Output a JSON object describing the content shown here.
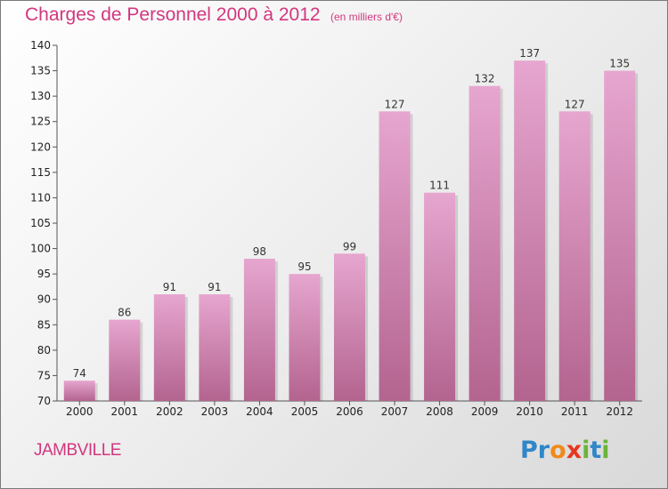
{
  "header": {
    "title": "Charges de Personnel 2000 à 2012",
    "subtitle": "(en milliers d'€)"
  },
  "footer": {
    "commune": "JAMBVILLE",
    "logo_text": "Proxiti",
    "logo_letters": [
      {
        "char": "P",
        "color": "#2f86c8"
      },
      {
        "char": "r",
        "color": "#2f86c8"
      },
      {
        "char": "o",
        "color": "#f08a1c"
      },
      {
        "char": "x",
        "color": "#e8361e"
      },
      {
        "char": "i",
        "color": "#6bb43a"
      },
      {
        "char": "t",
        "color": "#2f86c8"
      },
      {
        "char": "i",
        "color": "#6bb43a"
      }
    ]
  },
  "colors": {
    "accent": "#d2377f",
    "bar_top": "#e6a6cf",
    "bar_bottom": "#b3648f"
  },
  "chart_data": {
    "type": "bar",
    "title": "Charges de Personnel 2000 à 2012",
    "subtitle": "(en milliers d'€)",
    "categories": [
      "2000",
      "2001",
      "2002",
      "2003",
      "2004",
      "2005",
      "2006",
      "2007",
      "2008",
      "2009",
      "2010",
      "2011",
      "2012"
    ],
    "values": [
      74,
      86,
      91,
      91,
      98,
      95,
      99,
      127,
      111,
      132,
      137,
      127,
      135
    ],
    "ylim": [
      70,
      140
    ],
    "yticks": [
      70,
      75,
      80,
      85,
      90,
      95,
      100,
      105,
      110,
      115,
      120,
      125,
      130,
      135,
      140
    ],
    "grid": false,
    "legend": "none"
  }
}
